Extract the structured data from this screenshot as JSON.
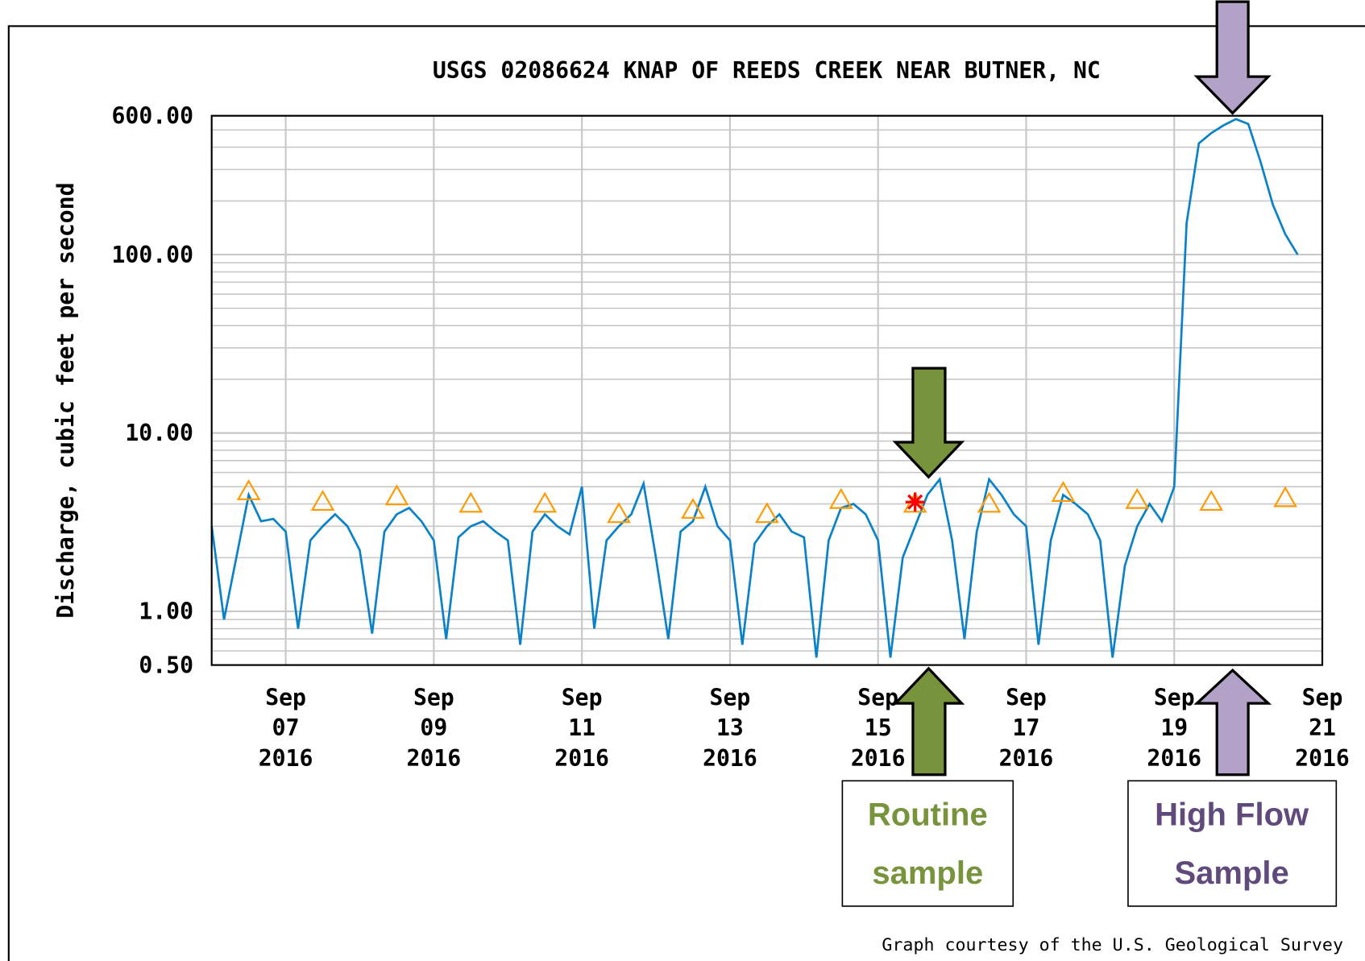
{
  "chart_data": {
    "type": "line",
    "title": "USGS 02086624 KNAP OF REEDS CREEK NEAR BUTNER, NC",
    "y_label": "Discharge, cubic feet per second",
    "log_y": true,
    "grid": true,
    "ylim": [
      0.5,
      600
    ],
    "yticks": [
      {
        "value": 0.5,
        "label": "0.50"
      },
      {
        "value": 1,
        "label": "1.00"
      },
      {
        "value": 10,
        "label": "10.00"
      },
      {
        "value": 100,
        "label": "100.00"
      },
      {
        "value": 600,
        "label": "600.00"
      }
    ],
    "minor_yticks": [
      0.6,
      0.7,
      0.8,
      0.9,
      2,
      3,
      4,
      5,
      6,
      7,
      8,
      9,
      20,
      30,
      40,
      50,
      60,
      70,
      80,
      90,
      200,
      300,
      400,
      500
    ],
    "xlim": [
      "2016-09-06",
      "2016-09-21"
    ],
    "xticks": [
      {
        "value": "2016-09-07",
        "label": "Sep 07 2016"
      },
      {
        "value": "2016-09-09",
        "label": "Sep 09 2016"
      },
      {
        "value": "2016-09-11",
        "label": "Sep 11 2016"
      },
      {
        "value": "2016-09-13",
        "label": "Sep 13 2016"
      },
      {
        "value": "2016-09-15",
        "label": "Sep 15 2016"
      },
      {
        "value": "2016-09-17",
        "label": "Sep 17 2016"
      },
      {
        "value": "2016-09-19",
        "label": "Sep 19 2016"
      },
      {
        "value": "2016-09-21",
        "label": "Sep 21 2016"
      }
    ],
    "series": [
      {
        "color": "#0a82c8",
        "marker": "line",
        "values": [
          3.0,
          0.9,
          2.0,
          4.5,
          3.2,
          3.3,
          2.8,
          0.8,
          2.5,
          3.0,
          3.5,
          3.0,
          2.2,
          0.75,
          2.8,
          3.5,
          3.8,
          3.2,
          2.5,
          0.7,
          2.6,
          3.0,
          3.2,
          2.8,
          2.5,
          0.65,
          2.8,
          3.5,
          3.0,
          2.7,
          5.0,
          0.8,
          2.5,
          3.0,
          3.5,
          5.2,
          2.0,
          0.7,
          2.8,
          3.2,
          5.0,
          3.0,
          2.5,
          0.65,
          2.4,
          3.0,
          3.5,
          2.8,
          2.6,
          0.55,
          2.5,
          3.8,
          4.0,
          3.5,
          2.5,
          0.55,
          2.0,
          3.0,
          4.5,
          5.5,
          2.5,
          0.7,
          2.8,
          5.5,
          4.5,
          3.5,
          3.0,
          0.65,
          2.5,
          4.5,
          4.0,
          3.5,
          2.5,
          0.55,
          1.8,
          3.0,
          4.0,
          3.2,
          5.0,
          150,
          420,
          480,
          530,
          575,
          540,
          330,
          190,
          130,
          100,
          null,
          null
        ]
      },
      {
        "color": "#ff9900",
        "marker": "triangle",
        "values": [
          4.7,
          4.1,
          4.4,
          4.0,
          4.0,
          3.5,
          3.7,
          3.5,
          4.2,
          4.0,
          4.0,
          4.6,
          4.2,
          4.1,
          4.3
        ]
      },
      {
        "color": "#ff0000",
        "marker": "asterisk",
        "values": [
          null,
          null,
          null,
          null,
          null,
          null,
          null,
          null,
          null,
          4.1,
          null,
          null,
          null,
          null,
          null
        ]
      }
    ],
    "annotations": [
      {
        "text": "Routine sample",
        "color": "#77933c"
      },
      {
        "text": "High Flow Sample",
        "color": "#604a7b"
      }
    ],
    "credit": "Graph courtesy of the U.S. Geological Survey"
  }
}
